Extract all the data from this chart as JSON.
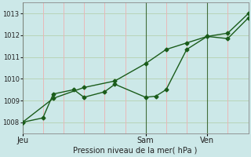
{
  "xlabel": "Pression niveau de la mer( hPa )",
  "bg_color": "#cce8e8",
  "plot_bg_color": "#cce8e8",
  "grid_color_h": "#b8d4b8",
  "grid_color_v": "#e8b8b8",
  "line_color": "#1a5c1a",
  "ylim": [
    1007.5,
    1013.5
  ],
  "yticks": [
    1008,
    1009,
    1010,
    1011,
    1012,
    1013
  ],
  "xtick_labels": [
    "Jeu",
    "Sam",
    "Ven"
  ],
  "xtick_positions": [
    0.0,
    0.545,
    0.818
  ],
  "vline_positions": [
    0.0,
    0.545,
    0.818
  ],
  "line1_x": [
    0.0,
    0.09,
    0.136,
    0.227,
    0.272,
    0.363,
    0.409,
    0.545,
    0.59,
    0.636,
    0.727,
    0.818,
    0.909,
    1.0
  ],
  "line1_y": [
    1008.0,
    1008.2,
    1009.3,
    1009.5,
    1009.15,
    1009.4,
    1009.75,
    1009.15,
    1009.2,
    1009.5,
    1011.35,
    1011.95,
    1011.85,
    1012.8
  ],
  "line2_x": [
    0.0,
    0.136,
    0.272,
    0.409,
    0.545,
    0.636,
    0.727,
    0.818,
    0.909,
    1.0
  ],
  "line2_y": [
    1008.0,
    1009.1,
    1009.6,
    1009.9,
    1010.7,
    1011.35,
    1011.65,
    1011.95,
    1012.1,
    1013.0
  ],
  "marker": "D",
  "markersize": 2.5,
  "linewidth": 1.0,
  "label_fontsize": 7.0,
  "tick_fontsize": 6.0
}
